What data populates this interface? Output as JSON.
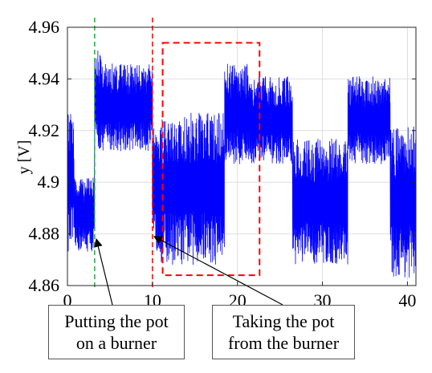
{
  "chart_data": {
    "type": "line",
    "xlabel": "",
    "ylabel": "y [V]",
    "xlim": [
      0,
      41
    ],
    "ylim": [
      4.86,
      4.96
    ],
    "xticks": [
      "0",
      "10",
      "20",
      "30",
      "40"
    ],
    "yticks": [
      "4.86",
      "4.88",
      "4.9",
      "4.92",
      "4.94",
      "4.96"
    ],
    "grid": true,
    "series": [
      {
        "color": "#0000ff",
        "segments": [
          {
            "x": [
              0.0,
              0.8
            ],
            "ymin": 4.873,
            "ymax": 4.927
          },
          {
            "x": [
              0.8,
              3.2
            ],
            "ymin": 4.873,
            "ymax": 4.902
          },
          {
            "x": [
              3.2,
              4.0
            ],
            "ymin": 4.912,
            "ymax": 4.951
          },
          {
            "x": [
              4.0,
              10.0
            ],
            "ymin": 4.912,
            "ymax": 4.946
          },
          {
            "x": [
              10.0,
              11.0
            ],
            "ymin": 4.873,
            "ymax": 4.922
          },
          {
            "x": [
              11.0,
              18.5
            ],
            "ymin": 4.868,
            "ymax": 4.927
          },
          {
            "x": [
              18.5,
              21.5
            ],
            "ymin": 4.907,
            "ymax": 4.946
          },
          {
            "x": [
              21.5,
              26.5
            ],
            "ymin": 4.907,
            "ymax": 4.941
          },
          {
            "x": [
              26.5,
              33.0
            ],
            "ymin": 4.868,
            "ymax": 4.917
          },
          {
            "x": [
              33.0,
              38.0
            ],
            "ymin": 4.907,
            "ymax": 4.941
          },
          {
            "x": [
              38.0,
              41.0
            ],
            "ymin": 4.863,
            "ymax": 4.922
          }
        ]
      }
    ],
    "vlines": [
      {
        "x": 3.2,
        "color": "#22aa44",
        "style": "dashed"
      },
      {
        "x": 10.0,
        "color": "#ff0000",
        "style": "dashed"
      }
    ],
    "regions": [
      {
        "x": [
          11.2,
          22.6
        ],
        "y": [
          4.864,
          4.954
        ],
        "color": "#ff0000",
        "style": "dashed"
      }
    ],
    "annotations": [
      {
        "lines": [
          "Putting the pot",
          "on a burner"
        ],
        "target": [
          3.4,
          4.878
        ]
      },
      {
        "lines": [
          "Taking the pot",
          "from the burner"
        ],
        "target": [
          10.2,
          4.879
        ]
      }
    ]
  }
}
